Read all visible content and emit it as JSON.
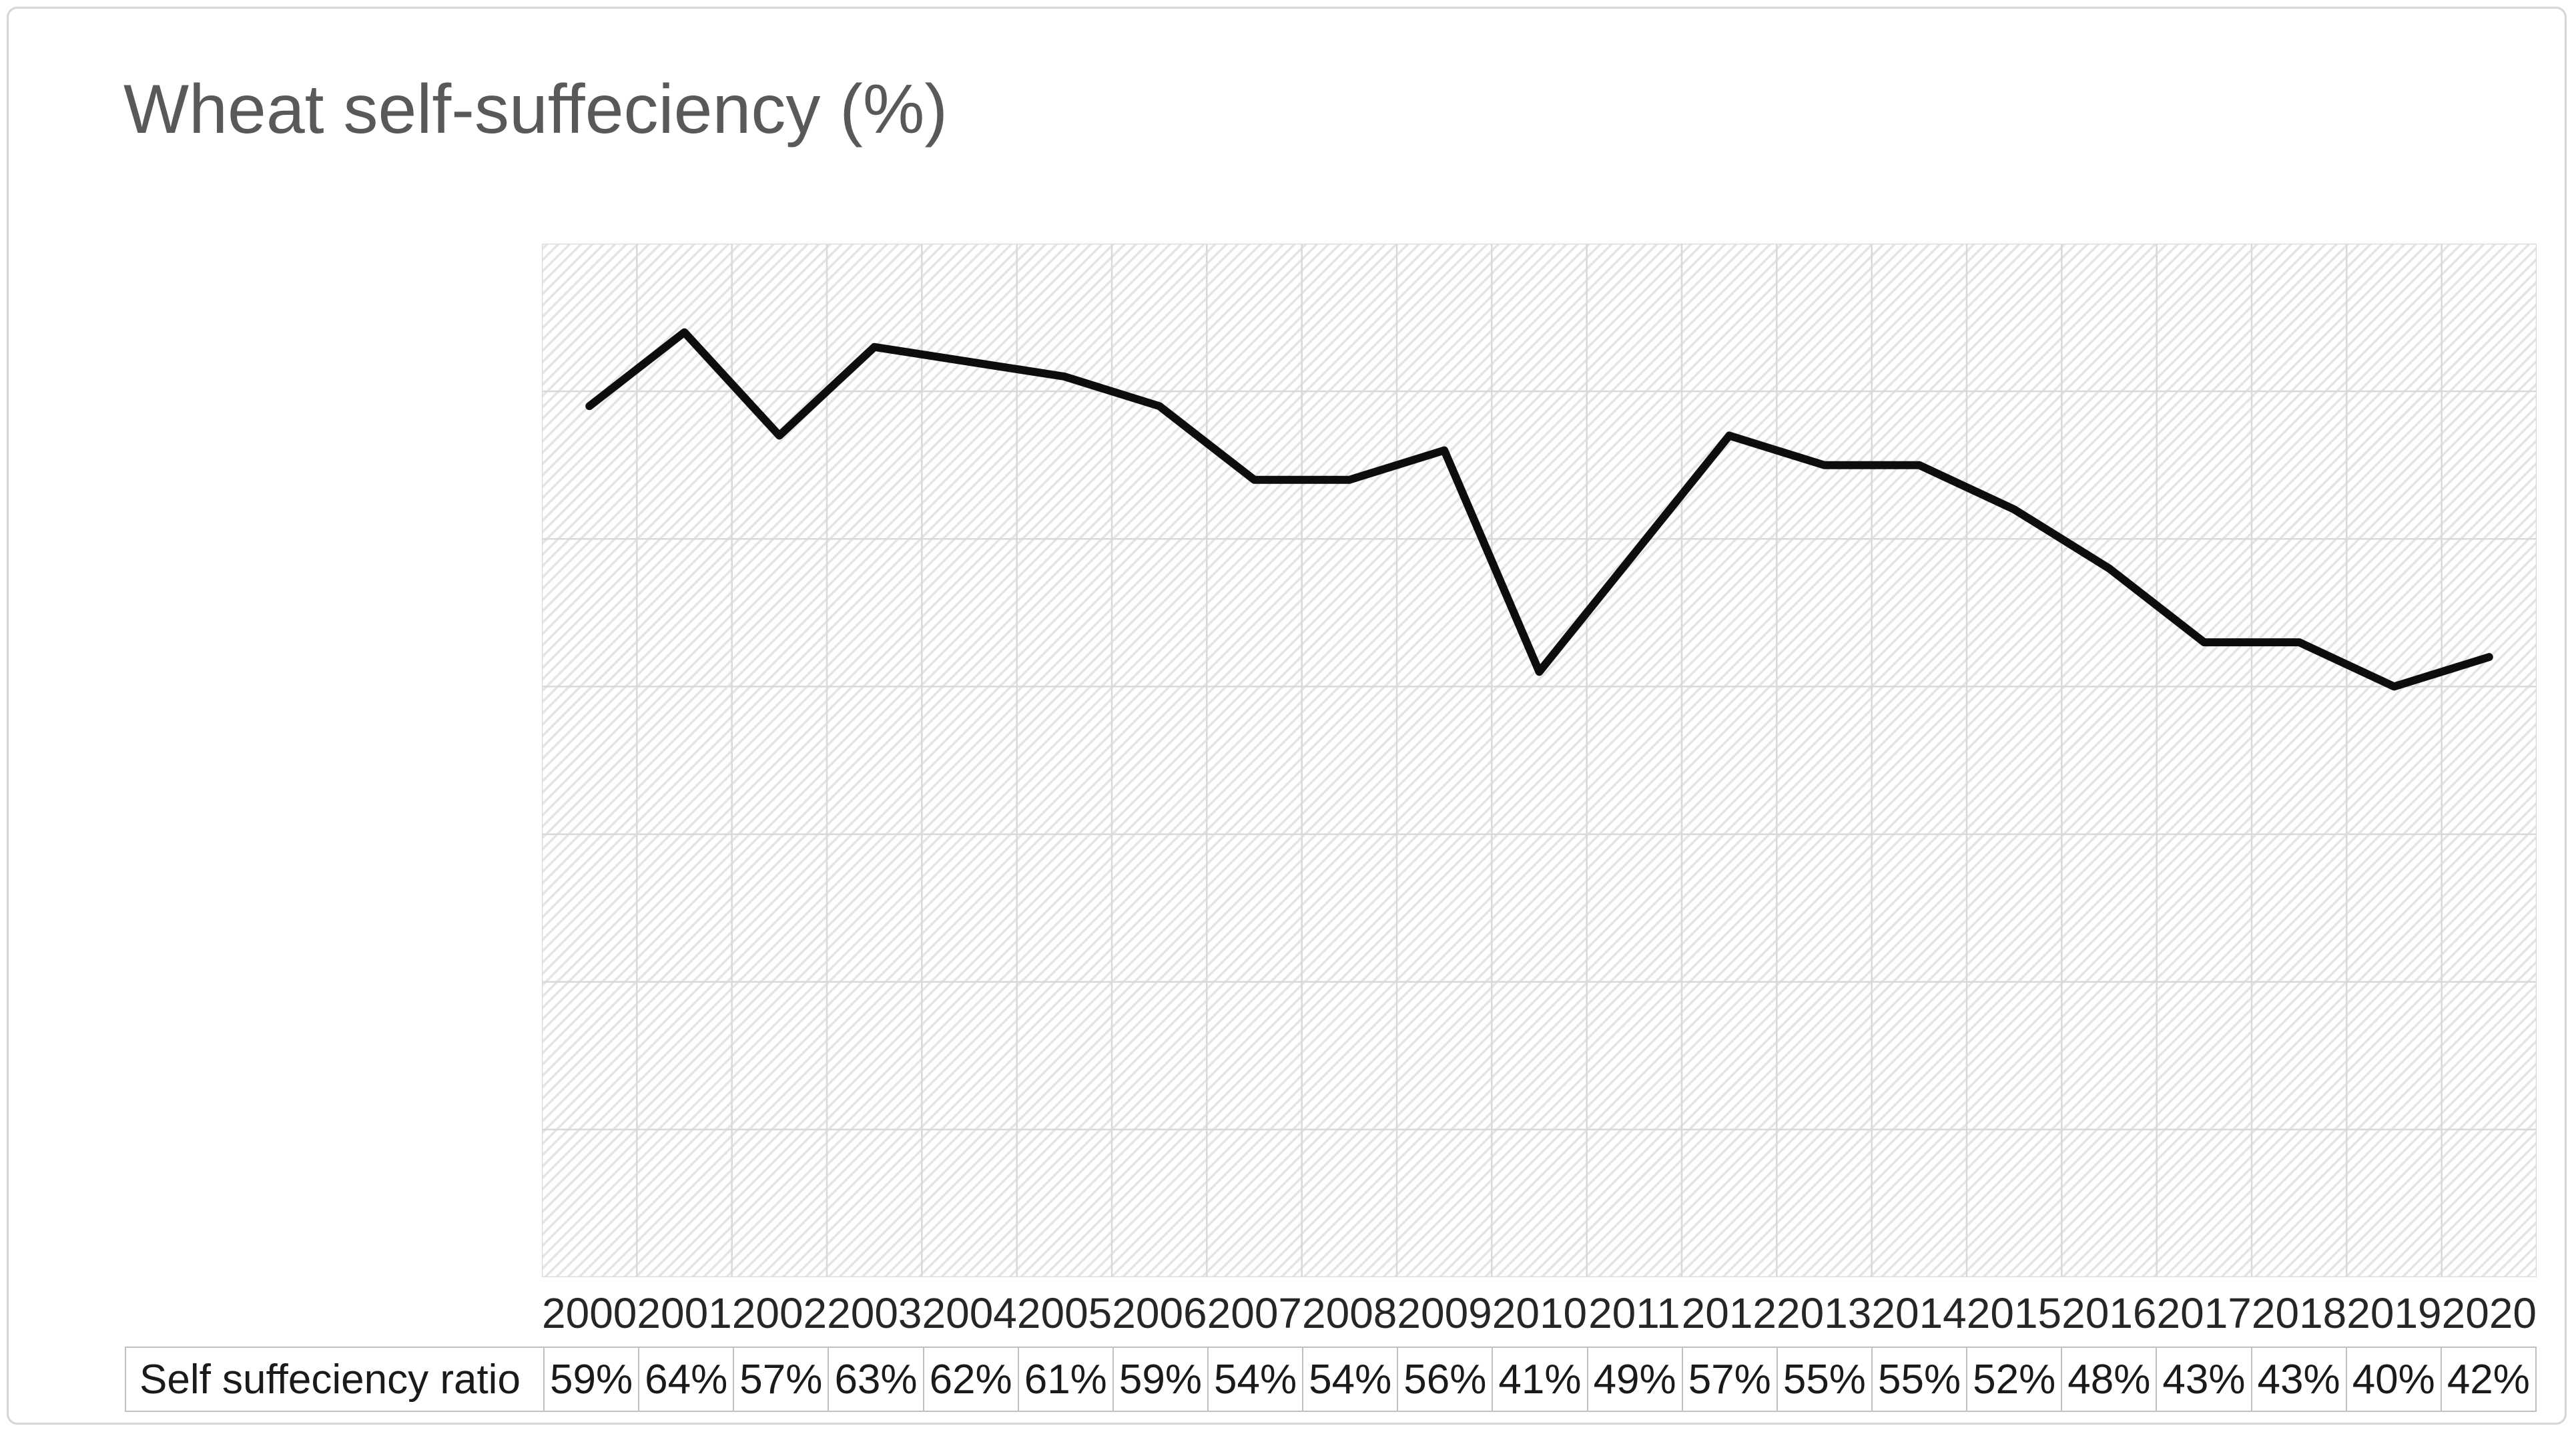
{
  "page": {
    "background": "#ffffff",
    "frame_border_color": "#d6d6d6"
  },
  "chart": {
    "title": "Wheat self-suffeciency (%)",
    "title_color": "#595959",
    "line_color": "#0d0d0d",
    "grid_color": "#d9d9d9",
    "hatch_color": "#e4e4e4",
    "axis_text_color": "#262626",
    "table_border_color": "#bfbfbf"
  },
  "chart_data": {
    "type": "line",
    "title": "Wheat self-suffeciency (%)",
    "categories": [
      "2000",
      "2001",
      "2002",
      "2003",
      "2004",
      "2005",
      "2006",
      "2007",
      "2008",
      "2009",
      "2010",
      "2011",
      "2012",
      "2013",
      "2014",
      "2015",
      "2016",
      "2017",
      "2018",
      "2019",
      "2020"
    ],
    "series": [
      {
        "name": "Self suffeciency ratio",
        "values": [
          59,
          64,
          57,
          63,
          62,
          61,
          59,
          54,
          54,
          56,
          41,
          49,
          57,
          55,
          55,
          52,
          48,
          43,
          43,
          40,
          42
        ],
        "labels": [
          "59%",
          "64%",
          "57%",
          "63%",
          "62%",
          "61%",
          "59%",
          "54%",
          "54%",
          "56%",
          "41%",
          "49%",
          "57%",
          "55%",
          "55%",
          "52%",
          "48%",
          "43%",
          "43%",
          "40%",
          "42%"
        ]
      }
    ],
    "xlabel": "",
    "ylabel": "",
    "ylim": [
      0,
      70
    ],
    "y_gridline_step": 10,
    "grid": true,
    "vertical_gridlines": true,
    "y_axis_labels_visible": false,
    "legend_position": "none",
    "plot_area_fill": "diagonal-hatch-pattern",
    "data_table_shown": true
  },
  "table": {
    "row_label": "Self suffeciency ratio"
  }
}
